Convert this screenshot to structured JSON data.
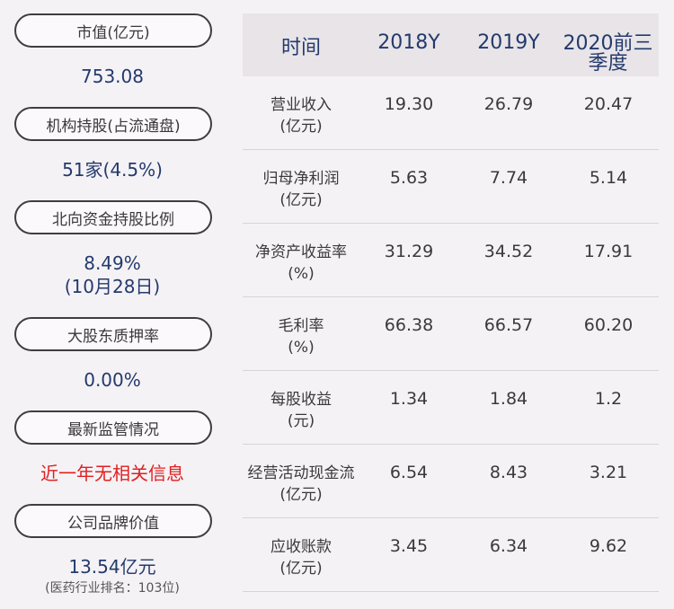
{
  "left_panel": {
    "items": [
      {
        "label": "市值(亿元)",
        "value": "753.08"
      },
      {
        "label": "机构持股(占流通盘)",
        "value": "51家(4.5%)"
      },
      {
        "label": "北向资金持股比例",
        "value": "8.49%",
        "value2": "(10月28日)"
      },
      {
        "label": "大股东质押率",
        "value": "0.00%"
      },
      {
        "label": "最新监管情况",
        "value": "近一年无相关信息"
      },
      {
        "label": "公司品牌价值",
        "value": "13.54亿元",
        "note": "(医药行业排名：103位)"
      }
    ]
  },
  "table": {
    "headers": [
      "时间",
      "2018Y",
      "2019Y",
      "2020前三季度"
    ],
    "header_last_line1": "2020前三",
    "header_last_line2": "季度",
    "rows": [
      {
        "label1": "营业收入",
        "label2": "(亿元)",
        "values": [
          "19.30",
          "26.79",
          "20.47"
        ]
      },
      {
        "label1": "归母净利润",
        "label2": "(亿元)",
        "values": [
          "5.63",
          "7.74",
          "5.14"
        ]
      },
      {
        "label1": "净资产收益率",
        "label2": "(%)",
        "values": [
          "31.29",
          "34.52",
          "17.91"
        ]
      },
      {
        "label1": "毛利率",
        "label2": "(%)",
        "values": [
          "66.38",
          "66.57",
          "60.20"
        ]
      },
      {
        "label1": "每股收益",
        "label2": "(元)",
        "values": [
          "1.34",
          "1.84",
          "1.2"
        ]
      },
      {
        "label1": "经营活动现金流",
        "label2": "(亿元)",
        "values": [
          "6.54",
          "8.43",
          "3.21"
        ]
      },
      {
        "label1": "应收账款",
        "label2": "(亿元)",
        "values": [
          "3.45",
          "6.34",
          "9.62"
        ]
      }
    ]
  },
  "colors": {
    "value_blue": "#233a6d",
    "alert_red": "#e02020",
    "header_bg": "#e8e4e8",
    "page_bg": "#f5f2f5"
  }
}
